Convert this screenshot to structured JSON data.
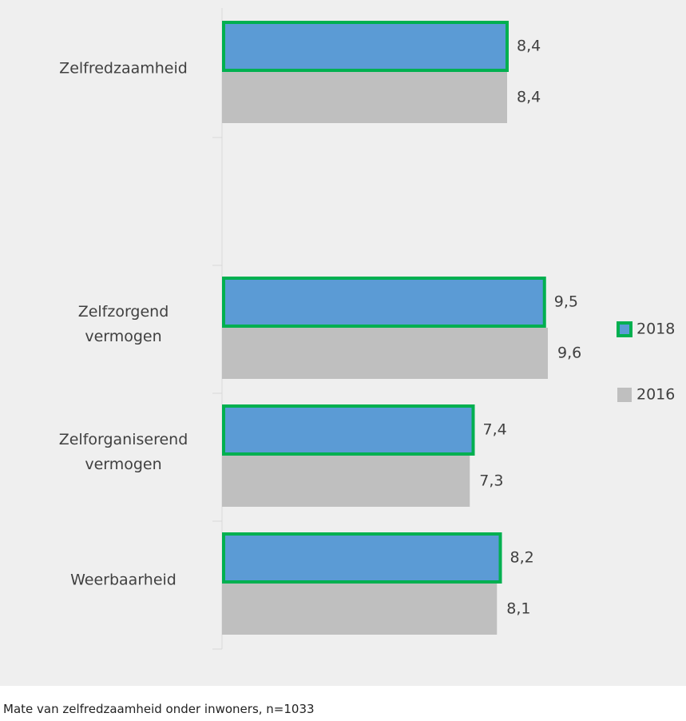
{
  "chart_data": {
    "type": "hbar",
    "categories": [
      "Zelfredzaamheid",
      null,
      "Zelfzorgend vermogen",
      "Zelforganiserend vermogen",
      "Weerbaarheid"
    ],
    "series": [
      {
        "name": "2018",
        "color": "#5b9bd5",
        "border_color": "#00b050",
        "values": [
          8.4,
          null,
          9.5,
          7.4,
          8.2
        ],
        "value_labels": [
          "8,4",
          null,
          "9,5",
          "7,4",
          "8,2"
        ]
      },
      {
        "name": "2016",
        "color": "#bfbfbf",
        "values": [
          8.4,
          null,
          9.6,
          7.3,
          8.1
        ],
        "value_labels": [
          "8,4",
          null,
          "9,6",
          "7,3",
          "8,1"
        ]
      }
    ],
    "xlim": [
      0,
      13
    ],
    "footnote": "Mate van zelfredzaamheid onder inwoners, n=1033"
  }
}
